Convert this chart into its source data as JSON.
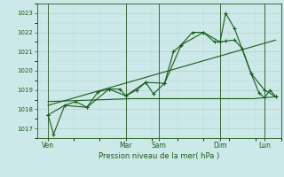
{
  "bg_color": "#cce8e8",
  "grid_major_color": "#aacccc",
  "grid_minor_color": "#bbdddd",
  "line_color": "#1a5c1a",
  "vline_color": "#3a6a3a",
  "title": "Pression niveau de la mer( hPa )",
  "ylim": [
    1016.5,
    1023.5
  ],
  "yticks": [
    1017,
    1018,
    1019,
    1020,
    1021,
    1022,
    1023
  ],
  "xlim": [
    0,
    22
  ],
  "xtick_labels": [
    "Ven",
    "Mar",
    "Sam",
    "Dim",
    "Lun"
  ],
  "xtick_positions": [
    1,
    8,
    11,
    16.5,
    20.5
  ],
  "vlines_x": [
    1,
    8,
    11,
    16.5,
    20.5
  ],
  "line1_jagged": {
    "x": [
      1.0,
      1.5,
      2.5,
      3.5,
      4.5,
      5.5,
      6.5,
      7.5,
      8.0,
      9.0,
      9.8,
      10.5,
      11.5,
      12.3,
      13.0,
      14.0,
      15.0,
      16.0,
      16.5,
      17.0,
      17.8,
      18.5,
      19.3,
      20.0,
      20.5,
      21.0,
      21.5
    ],
    "y": [
      1017.7,
      1016.7,
      1018.2,
      1018.4,
      1018.1,
      1018.9,
      1019.05,
      1019.05,
      1018.7,
      1019.0,
      1019.4,
      1018.8,
      1019.35,
      1021.0,
      1021.35,
      1022.0,
      1022.0,
      1021.5,
      1021.5,
      1021.55,
      1021.6,
      1021.15,
      1019.85,
      1018.85,
      1018.6,
      1019.0,
      1018.65
    ]
  },
  "line2_jagged_high": {
    "x": [
      1.0,
      2.5,
      4.5,
      6.5,
      8.0,
      9.8,
      11.5,
      13.0,
      15.0,
      16.5,
      17.0,
      17.8,
      19.3,
      20.5,
      21.5
    ],
    "y": [
      1017.7,
      1018.2,
      1018.1,
      1019.05,
      1018.7,
      1019.4,
      1019.35,
      1021.35,
      1022.0,
      1021.5,
      1023.0,
      1022.2,
      1019.85,
      1019.0,
      1018.65
    ]
  },
  "line3_flat": {
    "x": [
      1.0,
      8.5,
      14.5,
      16.5,
      17.5,
      18.5,
      19.5,
      20.5,
      21.5
    ],
    "y": [
      1018.4,
      1018.55,
      1018.55,
      1018.55,
      1018.55,
      1018.55,
      1018.55,
      1018.6,
      1018.65
    ]
  },
  "line4_rising": {
    "x": [
      1.0,
      21.5
    ],
    "y": [
      1018.2,
      1021.6
    ]
  }
}
